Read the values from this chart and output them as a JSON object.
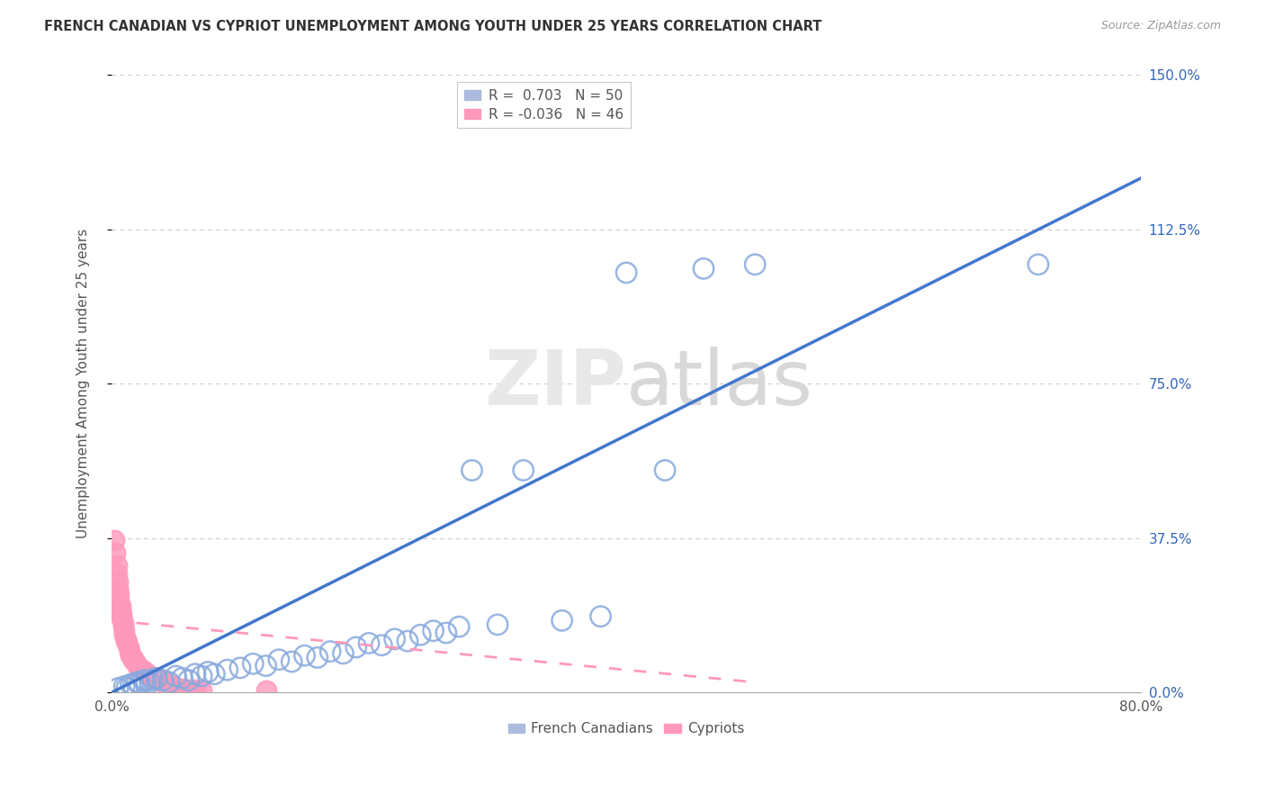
{
  "title": "FRENCH CANADIAN VS CYPRIOT UNEMPLOYMENT AMONG YOUTH UNDER 25 YEARS CORRELATION CHART",
  "source": "Source: ZipAtlas.com",
  "ylabel": "Unemployment Among Youth under 25 years",
  "xlim": [
    0.0,
    0.8
  ],
  "ylim": [
    0.0,
    1.5
  ],
  "xtick_positions": [
    0.0,
    0.2,
    0.4,
    0.6,
    0.8
  ],
  "xtick_labels_bottom": [
    "0.0%",
    "",
    "",
    "",
    "80.0%"
  ],
  "ytick_positions": [
    0.0,
    0.375,
    0.75,
    1.125,
    1.5
  ],
  "ytick_labels_right": [
    "0.0%",
    "37.5%",
    "75.0%",
    "112.5%",
    "150.0%"
  ],
  "watermark_zip": "ZIP",
  "watermark_atlas": "atlas",
  "blue_scatter_face": "none",
  "blue_scatter_edge": "#88AADD",
  "pink_scatter_face": "#FF99BB",
  "pink_scatter_edge": "#FF99BB",
  "blue_line_color": "#4477CC",
  "pink_line_color": "#FF99BB",
  "background_color": "#FFFFFF",
  "grid_color": "#CCCCCC",
  "fc_x": [
    0.005,
    0.01,
    0.012,
    0.015,
    0.017,
    0.02,
    0.022,
    0.025,
    0.027,
    0.03,
    0.032,
    0.035,
    0.04,
    0.045,
    0.05,
    0.055,
    0.06,
    0.065,
    0.07,
    0.075,
    0.08,
    0.09,
    0.1,
    0.11,
    0.12,
    0.13,
    0.14,
    0.15,
    0.16,
    0.17,
    0.18,
    0.19,
    0.2,
    0.21,
    0.22,
    0.23,
    0.24,
    0.25,
    0.26,
    0.27,
    0.28,
    0.3,
    0.32,
    0.35,
    0.38,
    0.4,
    0.43,
    0.46,
    0.5,
    0.72
  ],
  "fc_y": [
    0.01,
    0.015,
    0.012,
    0.02,
    0.018,
    0.025,
    0.022,
    0.03,
    0.028,
    0.025,
    0.032,
    0.035,
    0.03,
    0.025,
    0.04,
    0.035,
    0.03,
    0.045,
    0.04,
    0.05,
    0.045,
    0.055,
    0.06,
    0.07,
    0.065,
    0.08,
    0.075,
    0.09,
    0.085,
    0.1,
    0.095,
    0.11,
    0.12,
    0.115,
    0.13,
    0.125,
    0.14,
    0.15,
    0.145,
    0.16,
    0.54,
    0.165,
    0.54,
    0.175,
    0.185,
    1.02,
    0.54,
    1.03,
    1.04,
    1.04
  ],
  "cy_x": [
    0.002,
    0.003,
    0.004,
    0.004,
    0.005,
    0.005,
    0.006,
    0.006,
    0.007,
    0.007,
    0.008,
    0.008,
    0.009,
    0.009,
    0.01,
    0.01,
    0.011,
    0.011,
    0.012,
    0.013,
    0.014,
    0.015,
    0.016,
    0.017,
    0.018,
    0.02,
    0.022,
    0.024,
    0.026,
    0.028,
    0.03,
    0.032,
    0.034,
    0.036,
    0.038,
    0.04,
    0.042,
    0.044,
    0.046,
    0.048,
    0.05,
    0.055,
    0.06,
    0.065,
    0.07,
    0.12
  ],
  "cy_y": [
    0.37,
    0.34,
    0.31,
    0.29,
    0.27,
    0.255,
    0.24,
    0.225,
    0.21,
    0.2,
    0.19,
    0.18,
    0.17,
    0.16,
    0.15,
    0.14,
    0.13,
    0.125,
    0.12,
    0.11,
    0.1,
    0.09,
    0.085,
    0.08,
    0.075,
    0.065,
    0.06,
    0.055,
    0.05,
    0.045,
    0.04,
    0.038,
    0.035,
    0.032,
    0.03,
    0.025,
    0.022,
    0.02,
    0.018,
    0.015,
    0.012,
    0.01,
    0.008,
    0.007,
    0.006,
    0.005
  ]
}
